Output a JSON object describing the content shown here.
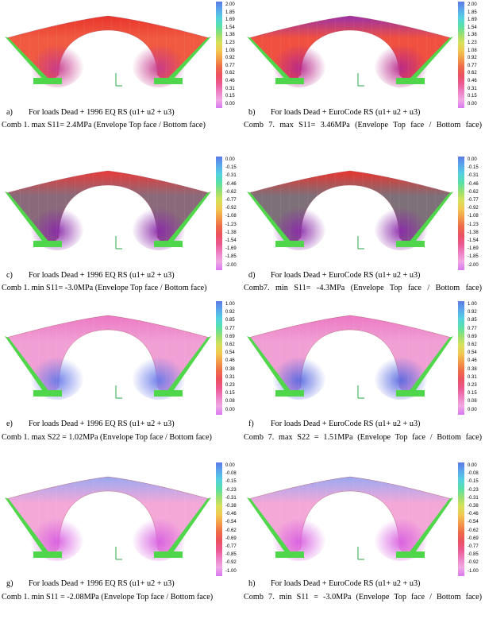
{
  "panels": [
    {
      "id": "a",
      "letter": "a)",
      "caption1": "For loads Dead + 1996 EQ RS (u1+ u2 + u3)",
      "caption2": "Comb 1. max S11= 2.4MPa (Envelope Top face / Bottom face)",
      "scale": [
        "2.00",
        "1.85",
        "1.69",
        "1.54",
        "1.38",
        "1.23",
        "1.08",
        "0.92",
        "0.77",
        "0.62",
        "0.46",
        "0.31",
        "0.15",
        "0.00"
      ],
      "scheme": "max",
      "colors": {
        "body": "#f05a40",
        "crown": "#e8342c",
        "hot": "#c83a8c",
        "edge": "#4fd64a"
      }
    },
    {
      "id": "b",
      "letter": "b)",
      "caption1": "For loads Dead + EuroCode RS (u1+ u2 + u3)",
      "caption2": "Comb 7. max S11= 3.46MPa (Envelope Top face / Bottom face)",
      "scale": [
        "2.00",
        "1.85",
        "1.69",
        "1.54",
        "1.38",
        "1.23",
        "1.08",
        "0.92",
        "0.77",
        "0.62",
        "0.46",
        "0.31",
        "0.15",
        "0.00"
      ],
      "scheme": "max",
      "colors": {
        "body": "#f05040",
        "crown": "#9a30a8",
        "hot": "#b8288a",
        "edge": "#4fd64a"
      }
    },
    {
      "id": "c",
      "letter": "c)",
      "caption1": "For loads Dead + 1996 EQ RS (u1+ u2 + u3)",
      "caption2": "Comb 1. min S11= -3.0MPa (Envelope Top face / Bottom face)",
      "scale": [
        "0.00",
        "-0.15",
        "-0.31",
        "-0.46",
        "-0.62",
        "-0.77",
        "-0.92",
        "-1.08",
        "-1.23",
        "-1.38",
        "-1.54",
        "-1.69",
        "-1.85",
        "-2.00"
      ],
      "scheme": "min",
      "colors": {
        "body": "#8a6a7a",
        "crown": "#e83a38",
        "hot": "#8a2aa8",
        "edge": "#4fd64a"
      }
    },
    {
      "id": "d",
      "letter": "d)",
      "caption1": "For loads Dead + EuroCode RS (u1+ u2 + u3)",
      "caption2": "Comb7. min S11= -4.3MPa (Envelope Top face / Bottom face)",
      "scale": [
        "0.00",
        "-0.15",
        "-0.31",
        "-0.46",
        "-0.62",
        "-0.77",
        "-0.92",
        "-1.08",
        "-1.23",
        "-1.38",
        "-1.54",
        "-1.69",
        "-1.85",
        "-2.00"
      ],
      "scheme": "min",
      "colors": {
        "body": "#7e7078",
        "crown": "#e8342c",
        "hot": "#8a2aa8",
        "edge": "#4fd64a"
      }
    },
    {
      "id": "e",
      "letter": "e)",
      "caption1": "For loads Dead + 1996 EQ RS (u1+ u2 + u3)",
      "caption2": "Comb 1. max S22 = 1.02MPa (Envelope Top face / Bottom face)",
      "scale": [
        "1.00",
        "0.92",
        "0.85",
        "0.77",
        "0.69",
        "0.62",
        "0.54",
        "0.46",
        "0.38",
        "0.31",
        "0.23",
        "0.15",
        "0.08",
        "0.00"
      ],
      "scheme": "s22",
      "colors": {
        "body": "#f0a0d4",
        "crown": "#ec78c4",
        "hot": "#6a7ae8",
        "edge": "#4fd64a"
      }
    },
    {
      "id": "f",
      "letter": "f)",
      "caption1": "For loads Dead + EuroCode RS (u1+ u2 + u3)",
      "caption2": "Comb 7. max S22 = 1.51MPa (Envelope Top face / Bottom face)",
      "scale": [
        "1.00",
        "0.92",
        "0.85",
        "0.77",
        "0.69",
        "0.62",
        "0.54",
        "0.46",
        "0.38",
        "0.31",
        "0.23",
        "0.15",
        "0.08",
        "0.00"
      ],
      "scheme": "s22",
      "colors": {
        "body": "#f0a0d4",
        "crown": "#ec78c4",
        "hot": "#5a6ae0",
        "edge": "#4fd64a"
      }
    },
    {
      "id": "g",
      "letter": "g)",
      "caption1": "For loads Dead + 1996 EQ RS (u1+ u2 + u3)",
      "caption2": "Comb 1. min S11 = -2.08MPa (Envelope Top face / Bottom face)",
      "scale": [
        "0.00",
        "-0.08",
        "-0.15",
        "-0.23",
        "-0.31",
        "-0.38",
        "-0.46",
        "-0.54",
        "-0.62",
        "-0.69",
        "-0.77",
        "-0.85",
        "-0.92",
        "-1.00"
      ],
      "scheme": "min2",
      "colors": {
        "body": "#f4a8d8",
        "crown": "#9aa8f0",
        "hot": "#d860e0",
        "edge": "#4fd64a"
      }
    },
    {
      "id": "h",
      "letter": "h)",
      "caption1": "For loads Dead + EuroCode RS (u1+ u2 + u3)",
      "caption2": "Comb 7. min S11 = -3.0MPa (Envelope Top face / Bottom face)",
      "scale": [
        "0.00",
        "-0.08",
        "-0.15",
        "-0.23",
        "-0.31",
        "-0.38",
        "-0.46",
        "-0.54",
        "-0.62",
        "-0.69",
        "-0.77",
        "-0.85",
        "-0.92",
        "-1.00"
      ],
      "scheme": "min2",
      "colors": {
        "body": "#f4a8d8",
        "crown": "#9aa8f0",
        "hot": "#d860e0",
        "edge": "#4fd64a"
      }
    }
  ],
  "colorbar_gradient": [
    "#5c7ae6",
    "#5aa8ec",
    "#54d2e0",
    "#58e0a8",
    "#98e070",
    "#d8e05a",
    "#f2c850",
    "#f29a48",
    "#ef6a48",
    "#ec5060",
    "#ec5890",
    "#ee80c4",
    "#f0a8e4",
    "#d878f0"
  ]
}
